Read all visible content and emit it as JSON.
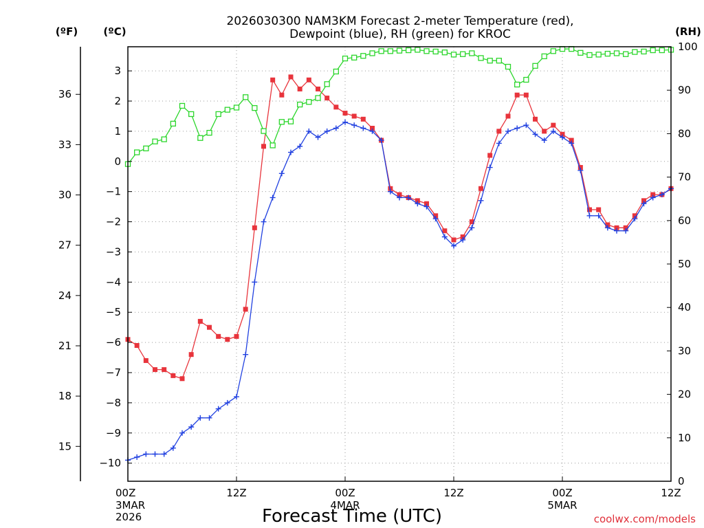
{
  "chart_data": {
    "type": "line",
    "title_lines": [
      "2026030300 NAM3KM Forecast 2-meter Temperature (red),",
      "Dewpoint (blue), RH (green) for KROC"
    ],
    "left_unit_f": "(ºF)",
    "left_unit_c": "(ºC)",
    "right_unit": "(RH)",
    "xlabel": "Forecast Time (UTC)",
    "credit": "coolwx.com/models",
    "x_range_hours": [
      0,
      60
    ],
    "celsius_range": [
      -10.6,
      3.8
    ],
    "rh_range": [
      0,
      100
    ],
    "x_ticks": [
      {
        "hour": 0,
        "label": "00Z",
        "sub": [
          "3MAR",
          "2026"
        ]
      },
      {
        "hour": 12,
        "label": "12Z",
        "sub": []
      },
      {
        "hour": 24,
        "label": "00Z",
        "sub": [
          "4MAR"
        ]
      },
      {
        "hour": 36,
        "label": "12Z",
        "sub": []
      },
      {
        "hour": 48,
        "label": "00Z",
        "sub": [
          "5MAR"
        ]
      },
      {
        "hour": 60,
        "label": "12Z",
        "sub": []
      }
    ],
    "celsius_ticks": [
      "3",
      "2",
      "1",
      "0",
      "−1",
      "−2",
      "−3",
      "−4",
      "−5",
      "−6",
      "−7",
      "−8",
      "−9",
      "−10"
    ],
    "fahrenheit_ticks": [
      "36",
      "33",
      "30",
      "27",
      "24",
      "21",
      "18",
      "15"
    ],
    "rh_ticks": [
      "100",
      "90",
      "80",
      "70",
      "60",
      "50",
      "40",
      "30",
      "20",
      "10",
      "0"
    ],
    "series": [
      {
        "name": "Temperature",
        "units": "C",
        "color": "#e8343c",
        "marker": "filled-square",
        "values": [
          -5.9,
          -6.1,
          -6.6,
          -6.9,
          -6.9,
          -7.1,
          -7.2,
          -6.4,
          -5.3,
          -5.5,
          -5.8,
          -5.9,
          -5.8,
          -4.9,
          -2.2,
          0.5,
          2.7,
          2.2,
          2.8,
          2.4,
          2.7,
          2.4,
          2.1,
          1.8,
          1.6,
          1.5,
          1.4,
          1.1,
          0.7,
          -0.9,
          -1.1,
          -1.2,
          -1.3,
          -1.4,
          -1.8,
          -2.3,
          -2.6,
          -2.5,
          -2.0,
          -0.9,
          0.2,
          1.0,
          1.5,
          2.2,
          2.2,
          1.4,
          1.0,
          1.2,
          0.9,
          0.7,
          -0.2,
          -1.6,
          -1.6,
          -2.1,
          -2.2,
          -2.2,
          -1.8,
          -1.3,
          -1.1,
          -1.1,
          -0.9
        ]
      },
      {
        "name": "Dewpoint",
        "units": "C",
        "color": "#2040e0",
        "marker": "plus",
        "values": [
          -9.9,
          -9.8,
          -9.7,
          -9.7,
          -9.7,
          -9.5,
          -9.0,
          -8.8,
          -8.5,
          -8.5,
          -8.2,
          -8.0,
          -7.8,
          -6.4,
          -4.0,
          -2.0,
          -1.2,
          -0.4,
          0.3,
          0.5,
          1.0,
          0.8,
          1.0,
          1.1,
          1.3,
          1.2,
          1.1,
          1.0,
          0.7,
          -1.0,
          -1.2,
          -1.2,
          -1.4,
          -1.5,
          -1.9,
          -2.5,
          -2.8,
          -2.6,
          -2.2,
          -1.3,
          -0.2,
          0.6,
          1.0,
          1.1,
          1.2,
          0.9,
          0.7,
          1.0,
          0.8,
          0.6,
          -0.3,
          -1.8,
          -1.8,
          -2.2,
          -2.3,
          -2.3,
          -1.9,
          -1.4,
          -1.2,
          -1.1,
          -0.9
        ]
      },
      {
        "name": "RH",
        "units": "%",
        "color": "#2bd62b",
        "marker": "open-square",
        "values": [
          73,
          75.7,
          76.6,
          78.2,
          78.7,
          82.3,
          86.4,
          84.5,
          79,
          80.2,
          84.5,
          85.5,
          86,
          88.4,
          85.9,
          80.6,
          77.3,
          82.7,
          82.8,
          86.7,
          87.3,
          88.2,
          91.4,
          94.3,
          97.3,
          97.5,
          97.9,
          98.5,
          99,
          99,
          99.1,
          99.2,
          99.3,
          99,
          98.9,
          98.7,
          98.2,
          98.3,
          98.5,
          97.4,
          96.8,
          96.8,
          95.4,
          91.3,
          92.4,
          95.6,
          97.8,
          99,
          99.5,
          99.5,
          98.6,
          98.1,
          98.2,
          98.4,
          98.5,
          98.3,
          98.8,
          98.9,
          99.2,
          99.2,
          99.3
        ]
      }
    ]
  }
}
